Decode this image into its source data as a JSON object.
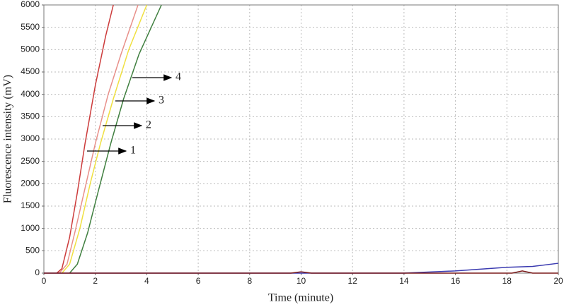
{
  "chart_data": {
    "type": "line",
    "xlabel": "Time (minute)",
    "ylabel": "Fluorescence intensity (mV)",
    "xlim": [
      0,
      20
    ],
    "xticks": [
      0,
      2,
      4,
      6,
      8,
      10,
      12,
      14,
      16,
      18,
      20
    ],
    "ylim": [
      0,
      6000
    ],
    "yticks": [
      0,
      500,
      1000,
      1500,
      2000,
      2500,
      3000,
      3500,
      4000,
      4500,
      5000,
      5500,
      6000
    ],
    "grid": true,
    "series": [
      {
        "color": "#cc3b3b",
        "x": [
          0.5,
          0.7,
          1.0,
          1.3,
          1.6,
          2.0,
          2.4,
          2.7
        ],
        "values": [
          0,
          100,
          800,
          1800,
          2900,
          4200,
          5300,
          6000
        ]
      },
      {
        "color": "#e8908a",
        "x": [
          0.6,
          0.9,
          1.2,
          1.6,
          2.0,
          2.5,
          3.0,
          3.66
        ],
        "values": [
          0,
          200,
          900,
          1900,
          2900,
          4000,
          4900,
          6000
        ]
      },
      {
        "color": "#f0e040",
        "x": [
          0.7,
          1.0,
          1.4,
          1.8,
          2.2,
          2.7,
          3.3,
          4.0
        ],
        "values": [
          0,
          200,
          1000,
          2000,
          2900,
          3900,
          5000,
          6000
        ]
      },
      {
        "color": "#3f7f3f",
        "x": [
          1.0,
          1.3,
          1.7,
          2.1,
          2.6,
          3.1,
          3.7,
          4.57
        ],
        "values": [
          0,
          200,
          900,
          1800,
          2900,
          3900,
          4900,
          6000
        ]
      },
      {
        "color": "#3a3ab0",
        "x": [
          0,
          14,
          16,
          18,
          19,
          20
        ],
        "values": [
          0,
          0,
          50,
          130,
          150,
          220
        ]
      },
      {
        "color": "#7a1a1a",
        "x": [
          0,
          9.6,
          10,
          10.4,
          18.2,
          18.6,
          19,
          20
        ],
        "values": [
          0,
          0,
          30,
          0,
          0,
          50,
          0,
          0
        ]
      }
    ],
    "annotations": [
      {
        "text": "1"
      },
      {
        "text": "2"
      },
      {
        "text": "3"
      },
      {
        "text": "4"
      }
    ]
  }
}
